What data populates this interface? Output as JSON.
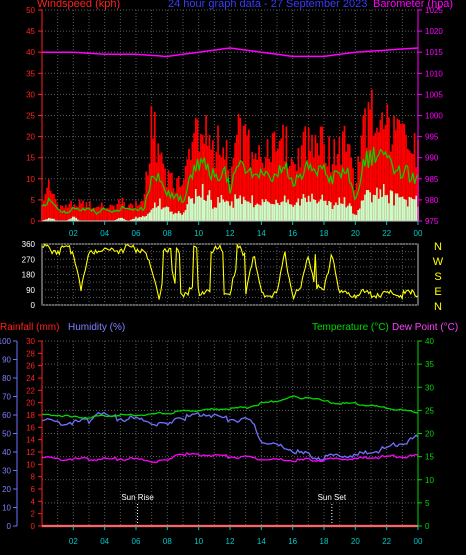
{
  "header": {
    "wind_label": "Windspeed (kph)",
    "title": "24 hour graph data - 27 September 2023",
    "baro_label": "Barometer (hpa)"
  },
  "colors": {
    "wind_label": "#ff2020",
    "title": "#3a3aff",
    "baro_label": "#ff00ff",
    "gust": "#ff0000",
    "avg": "#00d800",
    "min": "#c8ffc8",
    "baro": "#ff00ff",
    "dir": "#ffff00",
    "dir_labels": "#ffff00",
    "rain": "#ff2020",
    "hum": "#7070ff",
    "temp": "#00d800",
    "dew": "#ff00ff",
    "sun": "#ffffff",
    "grid": "#5a5a5a",
    "axis": "#3a3aff",
    "ticks": "#00c8c8"
  },
  "lower_header": {
    "rain_label": "Rainfall (mm)",
    "hum_label": "Humidity (%)",
    "temp_label": "Temperature (°C)",
    "dew_label": "Dew Point (°C)"
  },
  "chart_data": [
    {
      "type": "line",
      "title": "24 hour graph data - 27 September 2023",
      "x_tick_labels": [
        "02",
        "04",
        "06",
        "08",
        "10",
        "12",
        "14",
        "16",
        "18",
        "20",
        "22",
        "00"
      ],
      "grid": true,
      "left_axis": {
        "label": "Windspeed (kph)",
        "range": [
          0,
          50
        ],
        "ticks": [
          0,
          5,
          10,
          15,
          20,
          25,
          30,
          35,
          40,
          45,
          50
        ]
      },
      "right_axis": {
        "label": "Barometer (hpa)",
        "range": [
          975,
          1025
        ],
        "ticks": [
          975,
          980,
          985,
          990,
          995,
          1000,
          1005,
          1010,
          1015,
          1020,
          1025
        ]
      },
      "series": [
        {
          "name": "Windspeed",
          "axis": "left",
          "hours": [
            0,
            0.5,
            1,
            1.5,
            2,
            2.5,
            3,
            3.5,
            4,
            4.5,
            5,
            5.5,
            6,
            6.5,
            7,
            7.5,
            8,
            8.5,
            9,
            9.5,
            10,
            10.5,
            11,
            11.5,
            12,
            12.5,
            13,
            13.5,
            14,
            14.5,
            15,
            15.5,
            16,
            16.5,
            17,
            17.5,
            18,
            18.5,
            19,
            19.5,
            20,
            20.5,
            21,
            21.5,
            22,
            22.5,
            23,
            23.5,
            24
          ],
          "gust": [
            6,
            12,
            5,
            4,
            6,
            5,
            5,
            4,
            5,
            4,
            6,
            5,
            5,
            6,
            30,
            22,
            14,
            12,
            10,
            24,
            28,
            30,
            22,
            26,
            15,
            26,
            24,
            22,
            22,
            20,
            22,
            24,
            18,
            22,
            26,
            26,
            24,
            20,
            22,
            24,
            10,
            30,
            32,
            33,
            29,
            26,
            24,
            22,
            21
          ],
          "average": [
            3,
            5,
            3,
            2,
            3,
            3,
            3,
            2,
            3,
            2,
            3,
            3,
            3,
            3,
            10,
            11,
            7,
            6,
            5,
            12,
            14,
            15,
            10,
            13,
            8,
            13,
            13,
            11,
            11,
            10,
            12,
            13,
            9,
            11,
            13,
            13,
            12,
            10,
            12,
            12,
            4,
            14,
            15,
            16,
            14,
            13,
            12,
            11,
            11
          ],
          "minimum": [
            0,
            1,
            0,
            0,
            1,
            0,
            0,
            0,
            0,
            0,
            1,
            0,
            1,
            1,
            4,
            5,
            3,
            2,
            2,
            6,
            7,
            8,
            4,
            6,
            4,
            6,
            6,
            5,
            5,
            4,
            6,
            6,
            3,
            5,
            6,
            6,
            5,
            4,
            5,
            5,
            1,
            6,
            7,
            8,
            7,
            6,
            5,
            5,
            5
          ]
        },
        {
          "name": "Barometer",
          "axis": "right",
          "hours": [
            0,
            2,
            4,
            6,
            8,
            10,
            12,
            14,
            16,
            18,
            20,
            22,
            24
          ],
          "values": [
            1015,
            1015,
            1014.5,
            1014.5,
            1014,
            1015,
            1016,
            1015,
            1014,
            1014,
            1015,
            1015.5,
            1016
          ]
        }
      ]
    },
    {
      "type": "scatter",
      "title": "",
      "y_axis": {
        "range": [
          0,
          360
        ],
        "ticks": [
          0,
          45,
          90,
          135,
          180,
          225,
          270,
          315,
          360
        ]
      },
      "direction_labels": [
        "N",
        "W",
        "S",
        "E",
        "N"
      ],
      "grid": true,
      "series": [
        {
          "name": "Wind direction",
          "hours": [
            0,
            0.5,
            1,
            1.5,
            2,
            2.5,
            3,
            3.5,
            4,
            4.5,
            5,
            5.5,
            6,
            6.5,
            7,
            7.5,
            8,
            8.5,
            9,
            9.5,
            10,
            10.5,
            11,
            11.5,
            12,
            12.5,
            13,
            13.5,
            14,
            14.5,
            15,
            15.5,
            16,
            16.5,
            17,
            17.5,
            18,
            18.5,
            19,
            19.5,
            20,
            20.5,
            21,
            21.5,
            22,
            22.5,
            23,
            23.5,
            24
          ],
          "values": [
            340,
            330,
            320,
            330,
            320,
            100,
            300,
            330,
            330,
            320,
            330,
            340,
            330,
            330,
            200,
            50,
            300,
            100,
            70,
            90,
            80,
            90,
            85,
            70,
            75,
            250,
            80,
            300,
            60,
            60,
            70,
            300,
            60,
            80,
            300,
            100,
            80,
            320,
            70,
            60,
            65,
            70,
            60,
            70,
            65,
            70,
            60,
            65,
            70
          ]
        }
      ]
    },
    {
      "type": "line",
      "title": "",
      "x_tick_labels": [
        "02",
        "04",
        "06",
        "08",
        "10",
        "12",
        "14",
        "16",
        "18",
        "20",
        "22",
        "00"
      ],
      "grid": true,
      "humidity_axis": {
        "label": "Humidity (%)",
        "range": [
          0,
          100
        ],
        "ticks": [
          0,
          10,
          20,
          30,
          40,
          50,
          60,
          70,
          80,
          90,
          100
        ]
      },
      "rainfall_axis": {
        "label": "Rainfall (mm)",
        "range": [
          0,
          30
        ],
        "ticks": [
          0,
          2,
          4,
          6,
          8,
          10,
          12,
          14,
          16,
          18,
          20,
          22,
          24,
          26,
          28,
          30
        ]
      },
      "temperature_axis": {
        "label": "Temperature (°C)",
        "range": [
          0,
          40
        ],
        "ticks": [
          0,
          5,
          10,
          15,
          20,
          25,
          30,
          35,
          40
        ]
      },
      "annotations": [
        {
          "text": "Sun Rise",
          "hour": 6.1
        },
        {
          "text": "Sun Set",
          "hour": 18.5
        }
      ],
      "series": [
        {
          "name": "Rainfall",
          "axis": "rainfall",
          "hours": [
            0,
            24
          ],
          "values": [
            0,
            0
          ]
        },
        {
          "name": "Humidity",
          "axis": "humidity",
          "hours": [
            0,
            1,
            2,
            3,
            3.5,
            4,
            5,
            6,
            7,
            8,
            8.5,
            9,
            10,
            11,
            11.5,
            12,
            13,
            13.5,
            14,
            15,
            16,
            17,
            18,
            19,
            20,
            21,
            22,
            23,
            24
          ],
          "values": [
            58,
            56,
            56,
            57,
            62,
            60,
            58,
            58,
            56,
            54,
            59,
            58,
            61,
            60,
            58,
            58,
            57,
            55,
            46,
            43,
            41,
            38,
            37,
            38,
            38,
            40,
            42,
            45,
            48
          ]
        },
        {
          "name": "Temperature",
          "axis": "temperature",
          "hours": [
            0,
            1,
            2,
            3,
            4,
            5,
            6,
            7,
            8,
            9,
            10,
            11,
            12,
            13,
            14,
            15,
            16,
            16.5,
            17,
            18,
            19,
            20,
            21,
            22,
            23,
            24
          ],
          "values": [
            24,
            24,
            23.5,
            23.5,
            23.8,
            24,
            24,
            24.2,
            24.4,
            24.8,
            25,
            25.2,
            25.4,
            25.6,
            26.5,
            27,
            28,
            27.5,
            28,
            27,
            26.5,
            26.5,
            26,
            25.5,
            25,
            24.5
          ]
        },
        {
          "name": "Dew Point",
          "axis": "temperature",
          "hours": [
            0,
            1,
            2,
            3,
            4,
            5,
            6,
            7,
            8,
            8.5,
            9,
            10,
            11,
            12,
            13,
            14,
            15,
            16,
            17,
            18,
            19,
            20,
            21,
            22,
            23,
            24
          ],
          "values": [
            15,
            14.5,
            14.5,
            14.5,
            14.5,
            14.5,
            14.5,
            14,
            14,
            15.5,
            15.5,
            15.5,
            15.3,
            15,
            14.8,
            14.5,
            14.2,
            14.2,
            14.3,
            14.3,
            14.5,
            14.5,
            14.8,
            15,
            15,
            15.2
          ]
        }
      ]
    }
  ]
}
